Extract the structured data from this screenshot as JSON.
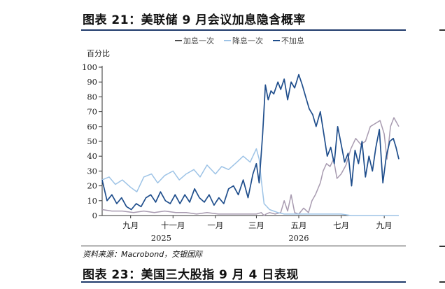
{
  "figure": {
    "title": "图表 21：美联储 9 月会议加息隐含概率",
    "source": "资料来源：Macrobond，交银国际",
    "next_title": "图表 23：美国三大股指 9 月 4 日表现"
  },
  "chart_data": {
    "type": "line",
    "title": "",
    "ylabel": "百分比",
    "ylim": [
      0,
      100
    ],
    "yticks": [
      0,
      10,
      20,
      30,
      40,
      50,
      60,
      70,
      80,
      90,
      100
    ],
    "xlim": [
      "2025-07-22",
      "2026-09-22"
    ],
    "x_ticks": [
      {
        "label": "九月",
        "date": "2025-09-01"
      },
      {
        "label": "十一月",
        "date": "2025-11-01"
      },
      {
        "label": "一月",
        "date": "2026-01-01"
      },
      {
        "label": "三月",
        "date": "2026-03-01"
      },
      {
        "label": "五月",
        "date": "2026-05-01"
      },
      {
        "label": "七月",
        "date": "2026-07-01"
      },
      {
        "label": "九月",
        "date": "2026-09-01"
      }
    ],
    "year_labels": [
      {
        "label": "2025",
        "date": "2025-10-15"
      },
      {
        "label": "2026",
        "date": "2026-05-01"
      }
    ],
    "legend_position": "top",
    "grid": false,
    "colors": {
      "hike": "#4d4d4d",
      "cut": "#9dc3e6",
      "hold": "#1f4e8c",
      "mauve": "#a89bb0"
    },
    "series": [
      {
        "name": "加息一次",
        "color": "#a89bb0",
        "x": [
          "2025-07-22",
          "2025-08-05",
          "2025-08-20",
          "2025-09-05",
          "2025-09-20",
          "2025-10-05",
          "2025-10-20",
          "2025-11-05",
          "2025-11-20",
          "2025-12-05",
          "2025-12-20",
          "2026-01-05",
          "2026-01-20",
          "2026-02-05",
          "2026-02-20",
          "2026-03-01",
          "2026-03-08",
          "2026-03-12",
          "2026-03-15",
          "2026-03-20",
          "2026-03-28",
          "2026-04-05",
          "2026-04-10",
          "2026-04-15",
          "2026-04-20",
          "2026-04-25",
          "2026-05-01",
          "2026-05-08",
          "2026-05-15",
          "2026-05-20",
          "2026-05-25",
          "2026-06-01",
          "2026-06-05",
          "2026-06-10",
          "2026-06-15",
          "2026-06-20",
          "2026-06-25",
          "2026-07-01",
          "2026-07-08",
          "2026-07-15",
          "2026-07-22",
          "2026-07-29",
          "2026-08-05",
          "2026-08-12",
          "2026-08-19",
          "2026-08-26",
          "2026-09-01",
          "2026-09-05",
          "2026-09-10",
          "2026-09-15",
          "2026-09-22"
        ],
        "values": [
          4,
          3,
          3,
          2,
          3,
          2,
          3,
          2,
          2,
          1,
          2,
          1,
          1,
          1,
          1,
          1,
          2,
          0,
          1,
          2,
          1,
          2,
          10,
          3,
          14,
          2,
          1,
          5,
          2,
          10,
          14,
          22,
          30,
          35,
          33,
          38,
          25,
          28,
          34,
          45,
          52,
          48,
          50,
          60,
          62,
          64,
          55,
          38,
          60,
          66,
          60
        ]
      },
      {
        "name": "降息一次",
        "color": "#9dc3e6",
        "x": [
          "2025-07-22",
          "2025-08-01",
          "2025-08-10",
          "2025-08-20",
          "2025-09-01",
          "2025-09-10",
          "2025-09-20",
          "2025-10-01",
          "2025-10-10",
          "2025-10-20",
          "2025-11-01",
          "2025-11-10",
          "2025-11-20",
          "2025-12-01",
          "2025-12-10",
          "2025-12-20",
          "2026-01-01",
          "2026-01-10",
          "2026-01-20",
          "2026-02-01",
          "2026-02-10",
          "2026-02-20",
          "2026-03-01",
          "2026-03-05",
          "2026-03-08",
          "2026-03-12",
          "2026-03-20",
          "2026-04-01",
          "2026-04-10",
          "2026-04-20",
          "2026-05-01",
          "2026-05-10",
          "2026-05-20",
          "2026-06-01",
          "2026-06-10",
          "2026-06-20",
          "2026-07-01",
          "2026-07-15",
          "2026-08-01",
          "2026-08-15",
          "2026-09-01",
          "2026-09-22"
        ],
        "values": [
          24,
          26,
          21,
          24,
          19,
          16,
          26,
          28,
          22,
          27,
          30,
          24,
          28,
          31,
          26,
          34,
          28,
          33,
          31,
          36,
          40,
          36,
          45,
          38,
          24,
          8,
          4,
          2,
          1,
          1,
          1,
          1,
          1,
          1,
          1,
          1,
          1,
          0,
          0,
          0,
          0,
          0
        ]
      },
      {
        "name": "不加息",
        "color": "#1f4e8c",
        "x": [
          "2025-07-22",
          "2025-07-29",
          "2025-08-05",
          "2025-08-12",
          "2025-08-19",
          "2025-08-26",
          "2025-09-02",
          "2025-09-09",
          "2025-09-16",
          "2025-09-23",
          "2025-09-30",
          "2025-10-07",
          "2025-10-14",
          "2025-10-21",
          "2025-10-28",
          "2025-11-04",
          "2025-11-11",
          "2025-11-18",
          "2025-11-25",
          "2025-12-02",
          "2025-12-09",
          "2025-12-16",
          "2025-12-23",
          "2025-12-30",
          "2026-01-06",
          "2026-01-13",
          "2026-01-20",
          "2026-01-27",
          "2026-02-03",
          "2026-02-10",
          "2026-02-17",
          "2026-02-24",
          "2026-03-01",
          "2026-03-05",
          "2026-03-10",
          "2026-03-14",
          "2026-03-18",
          "2026-03-22",
          "2026-03-26",
          "2026-04-01",
          "2026-04-05",
          "2026-04-10",
          "2026-04-15",
          "2026-04-20",
          "2026-04-25",
          "2026-05-01",
          "2026-05-06",
          "2026-05-11",
          "2026-05-16",
          "2026-05-21",
          "2026-05-26",
          "2026-06-01",
          "2026-06-06",
          "2026-06-11",
          "2026-06-16",
          "2026-06-21",
          "2026-06-26",
          "2026-07-01",
          "2026-07-06",
          "2026-07-11",
          "2026-07-16",
          "2026-07-21",
          "2026-07-26",
          "2026-07-31",
          "2026-08-05",
          "2026-08-10",
          "2026-08-15",
          "2026-08-20",
          "2026-08-25",
          "2026-08-30",
          "2026-09-04",
          "2026-09-09",
          "2026-09-14",
          "2026-09-18",
          "2026-09-22"
        ],
        "values": [
          24,
          10,
          14,
          8,
          12,
          6,
          4,
          8,
          6,
          12,
          14,
          9,
          16,
          10,
          8,
          14,
          8,
          14,
          9,
          18,
          12,
          9,
          14,
          7,
          12,
          8,
          18,
          20,
          14,
          24,
          12,
          28,
          35,
          22,
          55,
          88,
          78,
          84,
          82,
          90,
          85,
          92,
          78,
          90,
          86,
          95,
          88,
          80,
          72,
          68,
          60,
          70,
          55,
          40,
          46,
          35,
          60,
          48,
          36,
          42,
          20,
          44,
          35,
          50,
          26,
          40,
          30,
          46,
          58,
          22,
          40,
          50,
          52,
          46,
          38
        ]
      }
    ]
  }
}
